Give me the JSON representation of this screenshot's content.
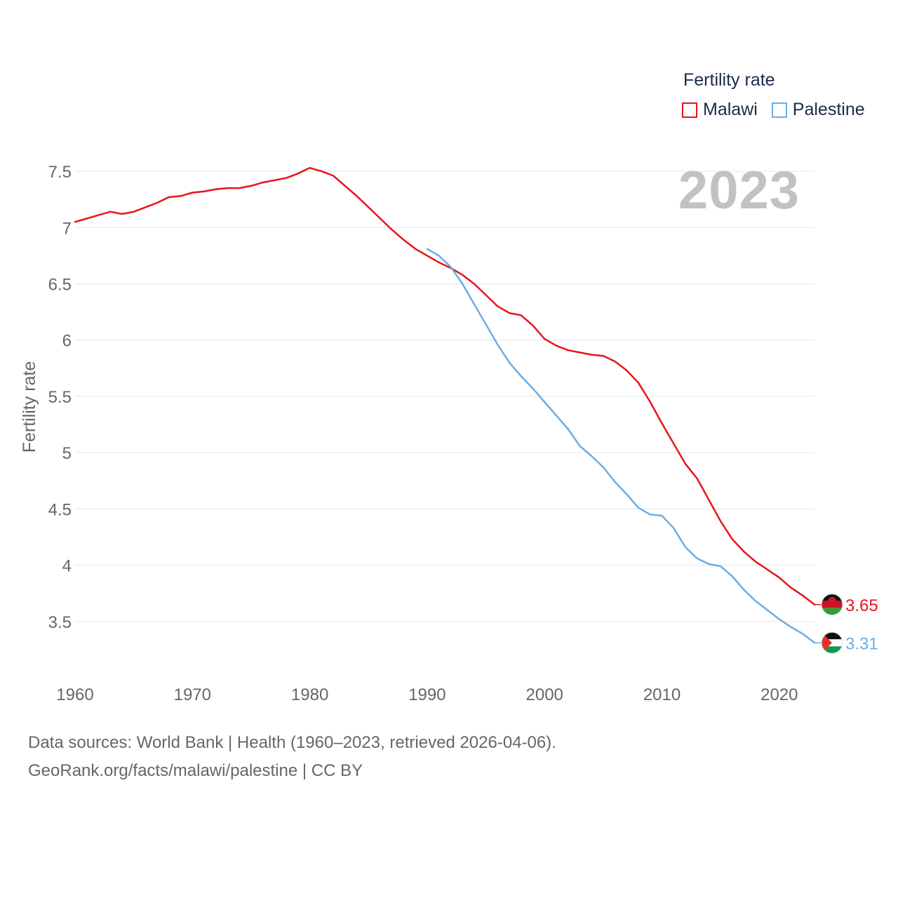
{
  "legend": {
    "title": "Fertility rate",
    "items": [
      {
        "label": "Malawi",
        "color": "#e8141b"
      },
      {
        "label": "Palestine",
        "color": "#69aee8"
      }
    ]
  },
  "year_label": "2023",
  "footer": {
    "line1": "Data sources: World Bank | Health (1960–2023, retrieved 2026-04-06).",
    "line2": "GeoRank.org/facts/malawi/palestine | CC BY"
  },
  "chart_data": {
    "type": "line",
    "ylabel": "Fertility rate",
    "xlabel": "",
    "xlim": [
      1960,
      2023
    ],
    "ylim": [
      3.1,
      7.65
    ],
    "x_ticks": [
      "1960",
      "1970",
      "1980",
      "1990",
      "2000",
      "2010",
      "2020"
    ],
    "y_ticks": [
      "3.5",
      "4",
      "4.5",
      "5",
      "5.5",
      "6",
      "6.5",
      "7",
      "7.5"
    ],
    "grid": true,
    "series": [
      {
        "name": "Malawi",
        "color": "#e8141b",
        "end_label": "3.65",
        "flag": "malawi",
        "x": [
          1960,
          1961,
          1962,
          1963,
          1964,
          1965,
          1966,
          1967,
          1968,
          1969,
          1970,
          1971,
          1972,
          1973,
          1974,
          1975,
          1976,
          1977,
          1978,
          1979,
          1980,
          1981,
          1982,
          1983,
          1984,
          1985,
          1986,
          1987,
          1988,
          1989,
          1990,
          1991,
          1992,
          1993,
          1994,
          1995,
          1996,
          1997,
          1998,
          1999,
          2000,
          2001,
          2002,
          2003,
          2004,
          2005,
          2006,
          2007,
          2008,
          2009,
          2010,
          2011,
          2012,
          2013,
          2014,
          2015,
          2016,
          2017,
          2018,
          2019,
          2020,
          2021,
          2022,
          2023
        ],
        "values": [
          7.05,
          7.08,
          7.11,
          7.14,
          7.12,
          7.14,
          7.18,
          7.22,
          7.27,
          7.28,
          7.31,
          7.32,
          7.34,
          7.35,
          7.35,
          7.37,
          7.4,
          7.42,
          7.44,
          7.48,
          7.53,
          7.5,
          7.46,
          7.37,
          7.28,
          7.18,
          7.08,
          6.98,
          6.89,
          6.81,
          6.75,
          6.69,
          6.64,
          6.58,
          6.5,
          6.4,
          6.3,
          6.24,
          6.22,
          6.13,
          6.01,
          5.95,
          5.91,
          5.89,
          5.87,
          5.86,
          5.81,
          5.73,
          5.62,
          5.45,
          5.26,
          5.08,
          4.9,
          4.77,
          4.58,
          4.39,
          4.23,
          4.12,
          4.03,
          3.96,
          3.89,
          3.8,
          3.73,
          3.65
        ]
      },
      {
        "name": "Palestine",
        "color": "#69aee8",
        "end_label": "3.31",
        "flag": "palestine",
        "x": [
          1990,
          1991,
          1992,
          1993,
          1994,
          1995,
          1996,
          1997,
          1998,
          1999,
          2000,
          2001,
          2002,
          2003,
          2004,
          2005,
          2006,
          2007,
          2008,
          2009,
          2010,
          2011,
          2012,
          2013,
          2014,
          2015,
          2016,
          2017,
          2018,
          2019,
          2020,
          2021,
          2022,
          2023
        ],
        "values": [
          6.81,
          6.75,
          6.65,
          6.5,
          6.32,
          6.14,
          5.96,
          5.8,
          5.68,
          5.57,
          5.45,
          5.33,
          5.21,
          5.06,
          4.97,
          4.87,
          4.74,
          4.63,
          4.51,
          4.45,
          4.44,
          4.33,
          4.16,
          4.06,
          4.01,
          3.99,
          3.9,
          3.78,
          3.68,
          3.6,
          3.52,
          3.45,
          3.39,
          3.31
        ]
      }
    ]
  }
}
